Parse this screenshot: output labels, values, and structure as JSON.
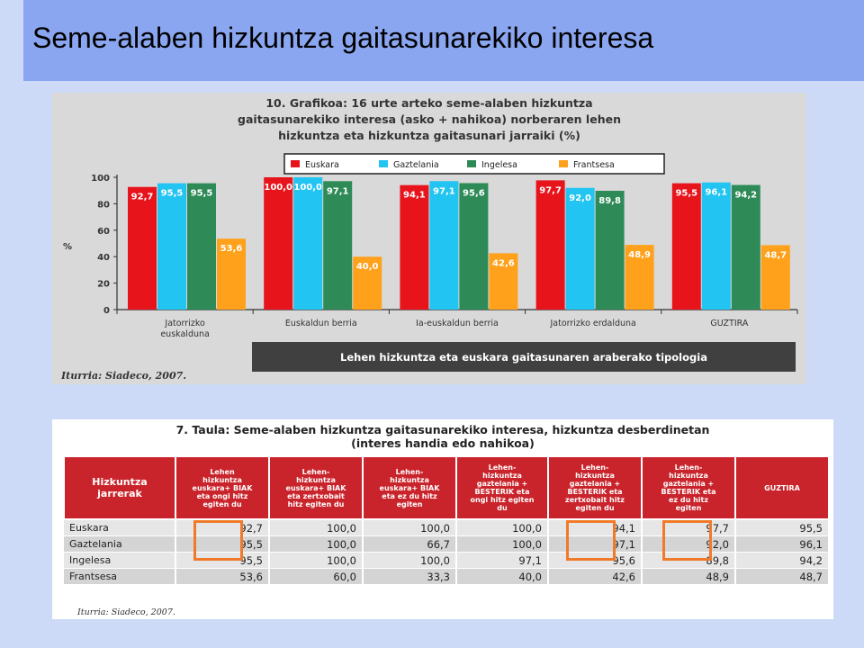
{
  "slide": {
    "title": "Seme-alaben hizkuntza gaitasunarekiko interesa"
  },
  "chart_data": {
    "type": "bar",
    "title": "10. Grafikoa: 16 urte arteko seme-alaben hizkuntza gaitasunarekiko interesa (asko + nahikoa) norberaren lehen hizkuntza eta hizkuntza gaitasunari jarraiki (%)",
    "title_lines": [
      "10. Grafikoa: 16 urte arteko seme-alaben hizkuntza",
      "gaitasunarekiko interesa (asko + nahikoa) norberaren lehen",
      "hizkuntza eta hizkuntza gaitasunari jarraiki (%)"
    ],
    "categories": [
      [
        "Jatorrizko",
        "euskalduna"
      ],
      [
        "Euskaldun berria"
      ],
      [
        "Ia-euskaldun berria"
      ],
      [
        "Jatorrizko erdalduna"
      ],
      [
        "GUZTIRA"
      ]
    ],
    "series": [
      {
        "name": "Euskara",
        "color": "#e8141c",
        "values": [
          92.7,
          100.0,
          94.1,
          97.7,
          95.5
        ],
        "labels": [
          "92,7",
          "100,0",
          "94,1",
          "97,7",
          "95,5"
        ]
      },
      {
        "name": "Gaztelania",
        "color": "#22c4f2",
        "values": [
          95.5,
          100.0,
          97.1,
          92.0,
          96.1
        ],
        "labels": [
          "95,5",
          "100,0",
          "97,1",
          "92,0",
          "96,1"
        ]
      },
      {
        "name": "Ingelesa",
        "color": "#2e8b57",
        "values": [
          95.5,
          97.1,
          95.6,
          89.8,
          94.2
        ],
        "labels": [
          "95,5",
          "97,1",
          "95,6",
          "89,8",
          "94,2"
        ]
      },
      {
        "name": "Frantsesa",
        "color": "#ffa11a",
        "values": [
          53.6,
          40.0,
          42.6,
          48.9,
          48.7
        ],
        "labels": [
          "53,6",
          "40,0",
          "42,6",
          "48,9",
          "48,7"
        ]
      }
    ],
    "ylabel": "%",
    "ylim": [
      0,
      100
    ],
    "yticks": [
      0,
      20,
      40,
      60,
      80,
      100
    ],
    "xlabel": "Lehen hizkuntza eta euskara gaitasunaren araberako tipologia",
    "source": "Iturria: Siadeco, 2007.",
    "legend_position": "top"
  },
  "table": {
    "title_lines": [
      "7. Taula: Seme-alaben hizkuntza gaitasunarekiko interesa, hizkuntza desberdinetan",
      "(interes handia edo nahikoa)"
    ],
    "headers": [
      [
        "Hizkuntza",
        "jarrerak"
      ],
      [
        "Lehen",
        "hizkuntza",
        "euskara+ BIAK",
        "eta ongi hitz",
        "egiten du"
      ],
      [
        "Lehen-",
        "hizkuntza",
        "euskara+ BIAK",
        "eta zertxobait",
        "hitz egiten du"
      ],
      [
        "Lehen-",
        "hizkuntza",
        "euskara+ BIAK",
        "eta ez du hitz",
        "egiten"
      ],
      [
        "Lehen-",
        "hizkuntza",
        "gaztelania +",
        "BESTERIK eta",
        "ongi hitz egiten",
        "du"
      ],
      [
        "Lehen-",
        "hizkuntza",
        "gaztelania +",
        "BESTERIK eta",
        "zertxobait hitz",
        "egiten du"
      ],
      [
        "Lehen-",
        "hizkuntza",
        "gaztelania +",
        "BESTERIK eta",
        "ez du hitz",
        "egiten"
      ],
      [
        "GUZTIRA"
      ]
    ],
    "rows": [
      {
        "label": "Euskara",
        "values": [
          "92,7",
          "100,0",
          "100,0",
          "100,0",
          "94,1",
          "97,7",
          "95,5"
        ]
      },
      {
        "label": "Gaztelania",
        "values": [
          "95,5",
          "100,0",
          "66,7",
          "100,0",
          "97,1",
          "92,0",
          "96,1"
        ]
      },
      {
        "label": "Ingelesa",
        "values": [
          "95,5",
          "100,0",
          "100,0",
          "97,1",
          "95,6",
          "89,8",
          "94,2"
        ]
      },
      {
        "label": "Frantsesa",
        "values": [
          "53,6",
          "60,0",
          "33,3",
          "40,0",
          "42,6",
          "48,9",
          "48,7"
        ]
      }
    ],
    "source": "Iturria: Siadeco, 2007."
  }
}
